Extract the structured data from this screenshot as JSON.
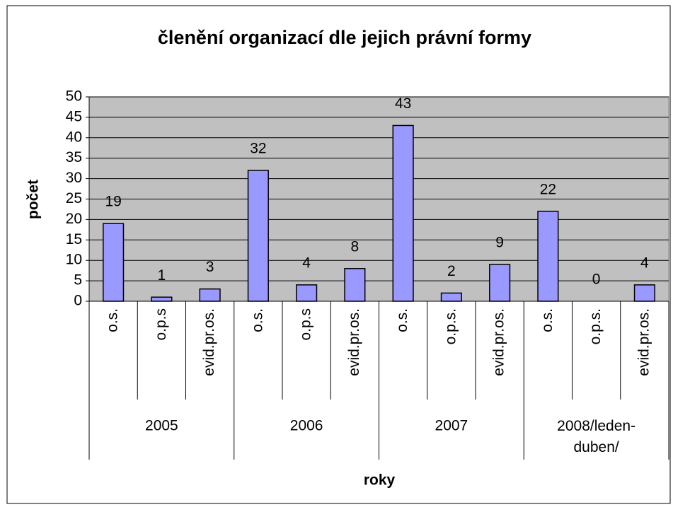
{
  "chart_data": {
    "type": "bar",
    "title": "členění organizací dle jejich právní formy",
    "x_label": "roky",
    "y_label": "počet",
    "categories": [
      "o.s.",
      "o.p.s",
      "evid.pr.os.",
      "o.s.",
      "o.p.s",
      "evid.pr.os.",
      "o.s.",
      "o.p.s.",
      "evid.pr.os.",
      "o.s.",
      "o.p.s.",
      "evid.pr.os."
    ],
    "groups": [
      "2005",
      "2006",
      "2007",
      "2008/leden-duben/"
    ],
    "values": [
      19,
      1,
      3,
      32,
      4,
      8,
      43,
      2,
      9,
      22,
      0,
      4
    ],
    "color": "#9999ff",
    "ylim": [
      0,
      50
    ],
    "yticks": [
      0,
      5,
      10,
      15,
      20,
      25,
      30,
      35,
      40,
      45,
      50
    ],
    "grid": true
  }
}
